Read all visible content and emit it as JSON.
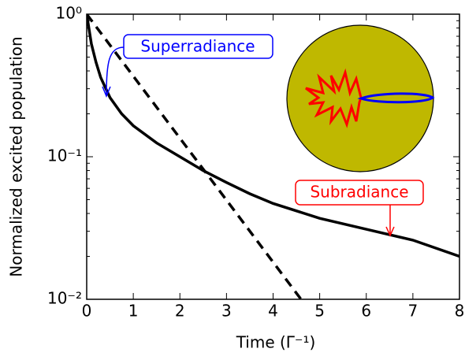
{
  "chart_data": {
    "type": "line",
    "x_label": "Time (Γ⁻¹)",
    "y_label": "Normalized excited population",
    "xlim": [
      0,
      8
    ],
    "xticks": [
      0,
      1,
      2,
      3,
      4,
      5,
      6,
      7,
      8
    ],
    "ylim": [
      0.01,
      1
    ],
    "yticks": [
      {
        "value": 0.01,
        "label": "10⁻²"
      },
      {
        "value": 0.1,
        "label": "10⁻¹"
      },
      {
        "value": 1,
        "label": "10⁰"
      }
    ],
    "y_scale": "log",
    "series": [
      {
        "color": "#000000",
        "dashed": false,
        "x": [
          0,
          0.1,
          0.2,
          0.3,
          0.5,
          0.75,
          1,
          1.5,
          2,
          2.5,
          3,
          3.5,
          4,
          5,
          6,
          7,
          8
        ],
        "values": [
          1,
          0.62,
          0.46,
          0.36,
          0.26,
          0.2,
          0.165,
          0.125,
          0.1,
          0.08,
          0.066,
          0.055,
          0.047,
          0.037,
          0.031,
          0.026,
          0.02
        ]
      },
      {
        "color": "#000000",
        "dashed": true,
        "x": [
          0,
          4.6
        ],
        "values": [
          1,
          0.01
        ]
      }
    ],
    "annotations": [
      {
        "text": "Superradiance",
        "color": "#0000ff"
      },
      {
        "text": "Subradiance",
        "color": "#ff0000"
      }
    ]
  }
}
